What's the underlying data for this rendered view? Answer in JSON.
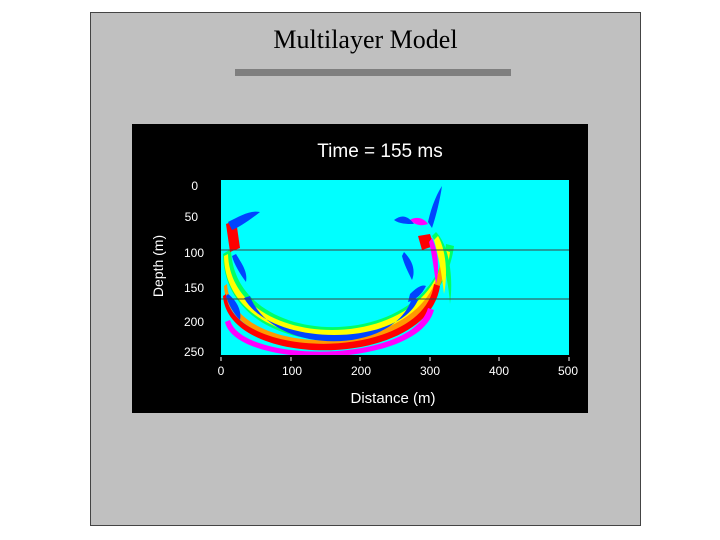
{
  "slide": {
    "title": "Multilayer Model"
  },
  "figure": {
    "caption": "Time = 155 ms",
    "ylabel": "Depth (m)",
    "xlabel": "Distance (m)",
    "x_ticks": [
      "0",
      "100",
      "200",
      "300",
      "400",
      "500"
    ],
    "y_ticks": [
      "0",
      "50",
      "100",
      "150",
      "200",
      "250"
    ],
    "layer_boundaries_depth_m": [
      100,
      170
    ],
    "colors": {
      "background": "#00ffff",
      "frame": "#000000",
      "red": "#ff0000",
      "magenta": "#ff00ff",
      "orange": "#ff9900",
      "yellow": "#ffff00",
      "green": "#00ff66",
      "blue": "#0044ff"
    }
  }
}
